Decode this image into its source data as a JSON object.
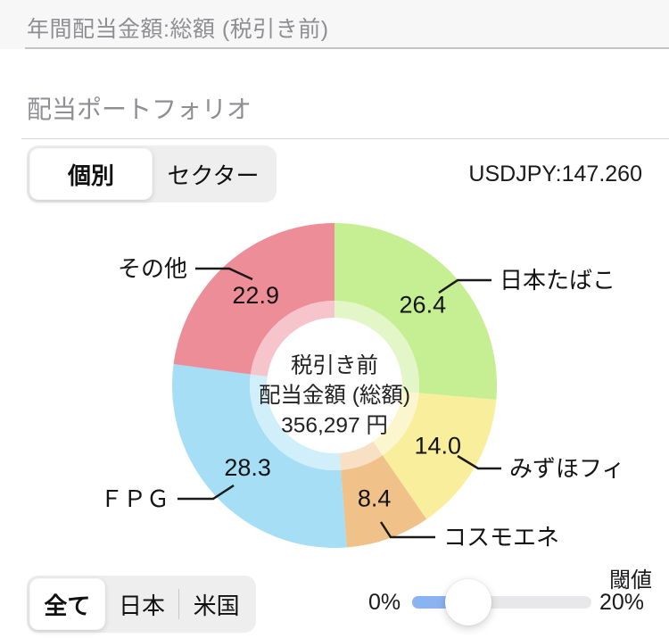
{
  "header": {
    "title": "年間配当金額:総額 (税引き前)"
  },
  "section": {
    "title": "配当ポートフォリオ",
    "usdjpy": "USDJPY:147.260"
  },
  "view_toggle": {
    "options": [
      {
        "label": "個別",
        "selected": true
      },
      {
        "label": "セクター",
        "selected": false
      }
    ]
  },
  "region_toggle": {
    "options": [
      {
        "label": "全て",
        "selected": true
      },
      {
        "label": "日本",
        "selected": false
      },
      {
        "label": "米国",
        "selected": false
      }
    ]
  },
  "threshold_slider": {
    "label": "閾値",
    "min_label": "0%",
    "max_label": "20%",
    "fill_color": "#8ab4f1"
  },
  "chart_data": {
    "type": "pie",
    "subtype": "donut",
    "title": "配当ポートフォリオ",
    "direction": "clockwise",
    "start_angle_deg": 0,
    "unit": "%",
    "center_label_lines": [
      "税引き前",
      "配当金額 (総額)",
      "356,297 円"
    ],
    "segments": [
      {
        "name": "日本たばこ",
        "value": 26.4,
        "color": "#c6ee93",
        "color_light": "#e2f6c8"
      },
      {
        "name": "みずほフィ",
        "value": 14.0,
        "color": "#f8ee9c",
        "color_light": "#fbf6cd"
      },
      {
        "name": "コスモエネ",
        "value": 8.4,
        "color": "#f0c28a",
        "color_light": "#f7e0c4"
      },
      {
        "name": "ＦＰＧ",
        "value": 28.3,
        "color": "#a5def5",
        "color_light": "#d1effa"
      },
      {
        "name": "その他",
        "value": 22.9,
        "color": "#ec8d98",
        "color_light": "#f5c5cb"
      }
    ]
  }
}
